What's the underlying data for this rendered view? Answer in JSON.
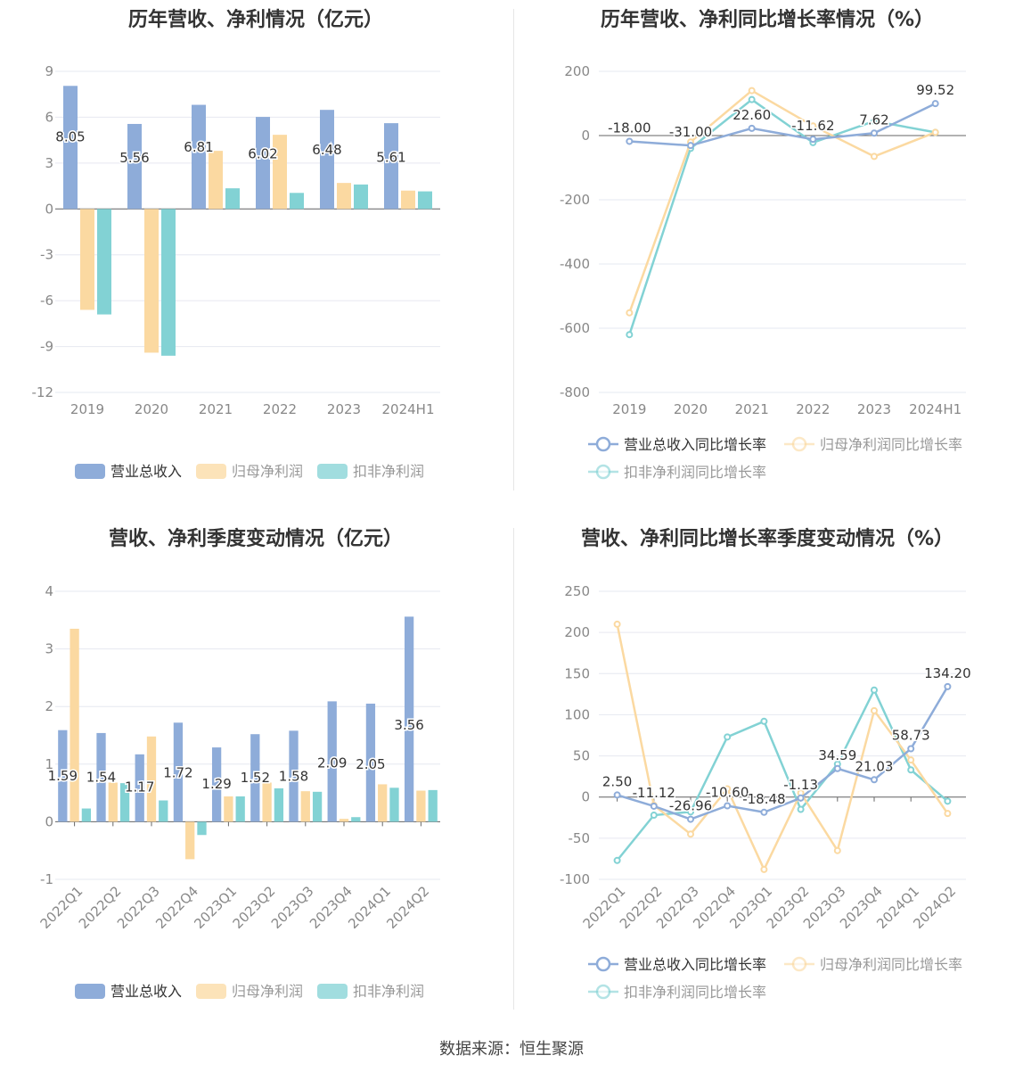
{
  "colors": {
    "revenue": "#8eacd9",
    "netprofit": "#fbd9a1",
    "deducted": "#82d2d4",
    "grid": "#e6e8f0",
    "axis": "#666666",
    "label": "#333333",
    "tick": "#888888"
  },
  "legend_bars": [
    "营业总收入",
    "归母净利润",
    "扣非净利润"
  ],
  "legend_lines": [
    "营业总收入同比增长率",
    "归母净利润同比增长率",
    "扣非净利润同比增长率"
  ],
  "source": "数据来源：恒生聚源",
  "chart_data": [
    {
      "type": "bar",
      "title": "历年营收、净利情况（亿元）",
      "categories": [
        "2019",
        "2020",
        "2021",
        "2022",
        "2023",
        "2024H1"
      ],
      "ylim": [
        -12,
        9
      ],
      "yticks": [
        9,
        6,
        3,
        0,
        -3,
        -6,
        -9,
        -12
      ],
      "series": [
        {
          "name": "营业总收入",
          "values": [
            8.05,
            5.56,
            6.81,
            6.02,
            6.48,
            5.61
          ],
          "labels": [
            "8.05",
            "5.56",
            "6.81",
            "6.02",
            "6.48",
            "5.61"
          ]
        },
        {
          "name": "归母净利润",
          "values": [
            -6.6,
            -9.4,
            3.8,
            4.85,
            1.7,
            1.2
          ]
        },
        {
          "name": "扣非净利润",
          "values": [
            -6.9,
            -9.6,
            1.35,
            1.05,
            1.6,
            1.15
          ]
        }
      ]
    },
    {
      "type": "line",
      "title": "历年营收、净利同比增长率情况（%）",
      "categories": [
        "2019",
        "2020",
        "2021",
        "2022",
        "2023",
        "2024H1"
      ],
      "ylim": [
        -800,
        200
      ],
      "yticks": [
        200,
        0,
        -200,
        -400,
        -600,
        -800
      ],
      "series": [
        {
          "name": "营业总收入同比增长率",
          "values": [
            -18.0,
            -31.0,
            22.6,
            -11.62,
            7.62,
            99.52
          ],
          "labels": [
            "-18.00",
            "-31.00",
            "22.60",
            "-11.62",
            "7.62",
            "99.52"
          ]
        },
        {
          "name": "归母净利润同比增长率",
          "values": [
            -552,
            -20,
            140,
            30,
            -65,
            10
          ]
        },
        {
          "name": "扣非净利润同比增长率",
          "values": [
            -620,
            -40,
            112,
            -22,
            45,
            10
          ]
        }
      ]
    },
    {
      "type": "bar",
      "title": "营收、净利季度变动情况（亿元）",
      "categories": [
        "2022Q1",
        "2022Q2",
        "2022Q3",
        "2022Q4",
        "2023Q1",
        "2023Q2",
        "2023Q3",
        "2023Q4",
        "2024Q1",
        "2024Q2"
      ],
      "ylim": [
        -1,
        4
      ],
      "yticks": [
        4,
        3,
        2,
        1,
        0,
        -1
      ],
      "series": [
        {
          "name": "营业总收入",
          "values": [
            1.59,
            1.54,
            1.17,
            1.72,
            1.29,
            1.52,
            1.58,
            2.09,
            2.05,
            3.56
          ],
          "labels": [
            "1.59",
            "1.54",
            "1.17",
            "1.72",
            "1.29",
            "1.52",
            "1.58",
            "2.09",
            "2.05",
            "3.56"
          ]
        },
        {
          "name": "归母净利润",
          "values": [
            3.35,
            0.68,
            1.48,
            -0.65,
            0.44,
            0.68,
            0.53,
            0.05,
            0.65,
            0.54
          ]
        },
        {
          "name": "扣非净利润",
          "values": [
            0.23,
            0.67,
            0.37,
            -0.23,
            0.44,
            0.58,
            0.52,
            0.08,
            0.59,
            0.55
          ]
        }
      ]
    },
    {
      "type": "line",
      "title": "营收、净利同比增长率季度变动情况（%）",
      "categories": [
        "2022Q1",
        "2022Q2",
        "2022Q3",
        "2022Q4",
        "2023Q1",
        "2023Q2",
        "2023Q3",
        "2023Q4",
        "2024Q1",
        "2024Q2"
      ],
      "ylim": [
        -100,
        250
      ],
      "yticks": [
        250,
        200,
        150,
        100,
        50,
        0,
        -50,
        -100
      ],
      "series": [
        {
          "name": "营业总收入同比增长率",
          "values": [
            2.5,
            -11.12,
            -26.96,
            -10.6,
            -18.48,
            -1.13,
            34.59,
            21.03,
            58.73,
            134.2
          ],
          "labels": [
            "2.50",
            "-11.12",
            "-26.96",
            "-10.60",
            "-18.48",
            "-1.13",
            "34.59",
            "21.03",
            "58.73",
            "134.20"
          ]
        },
        {
          "name": "归母净利润同比增长率",
          "values": [
            210,
            -10,
            -45,
            10,
            -88,
            5,
            -65,
            105,
            45,
            -20
          ]
        },
        {
          "name": "扣非净利润同比增长率",
          "values": [
            -77,
            -22,
            -18,
            73,
            92,
            -15,
            40,
            130,
            33,
            -5
          ]
        }
      ]
    }
  ]
}
